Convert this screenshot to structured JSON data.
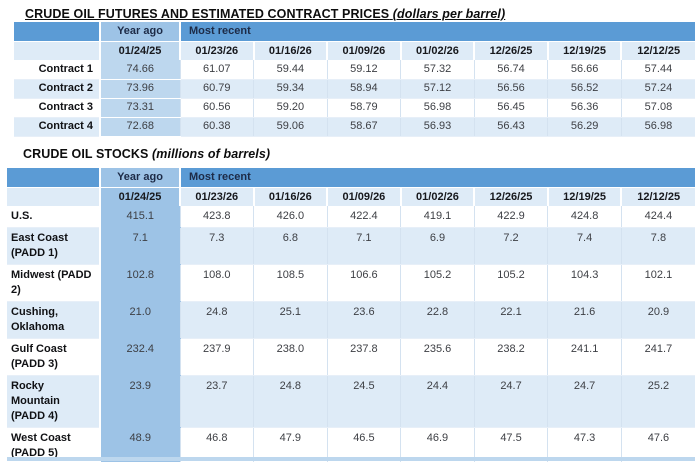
{
  "futures": {
    "title": "CRUDE OIL FUTURES AND ESTIMATED CONTRACT PRICES",
    "unit": "(dollars per barrel)",
    "year_ago_label": "Year ago",
    "most_recent_label": "Most recent",
    "year_ago_date": "01/24/25",
    "dates": [
      "01/23/26",
      "01/16/26",
      "01/09/26",
      "01/02/26",
      "12/26/25",
      "12/19/25",
      "12/12/25"
    ],
    "rows": [
      {
        "label": "Contract 1",
        "values": [
          "74.66",
          "61.07",
          "59.44",
          "59.12",
          "57.32",
          "56.74",
          "56.66",
          "57.44"
        ]
      },
      {
        "label": "Contract 2",
        "values": [
          "73.96",
          "60.79",
          "59.34",
          "58.94",
          "57.12",
          "56.56",
          "56.52",
          "57.24"
        ]
      },
      {
        "label": "Contract 3",
        "values": [
          "73.31",
          "60.56",
          "59.20",
          "58.79",
          "56.98",
          "56.45",
          "56.36",
          "57.08"
        ]
      },
      {
        "label": "Contract 4",
        "values": [
          "72.68",
          "60.38",
          "59.06",
          "58.67",
          "56.93",
          "56.43",
          "56.29",
          "56.98"
        ]
      }
    ]
  },
  "stocks": {
    "title": "CRUDE OIL STOCKS",
    "unit": "(millions of barrels)",
    "year_ago_label": "Year ago",
    "most_recent_label": "Most recent",
    "year_ago_date": "01/24/25",
    "dates": [
      "01/23/26",
      "01/16/26",
      "01/09/26",
      "01/02/26",
      "12/26/25",
      "12/19/25",
      "12/12/25"
    ],
    "rows": [
      {
        "label": "U.S.",
        "values": [
          "415.1",
          "423.8",
          "426.0",
          "422.4",
          "419.1",
          "422.9",
          "424.8",
          "424.4"
        ]
      },
      {
        "label": "East Coast (PADD 1)",
        "values": [
          "7.1",
          "7.3",
          "6.8",
          "7.1",
          "6.9",
          "7.2",
          "7.4",
          "7.8"
        ]
      },
      {
        "label": "Midwest (PADD 2)",
        "values": [
          "102.8",
          "108.0",
          "108.5",
          "106.6",
          "105.2",
          "105.2",
          "104.3",
          "102.1"
        ]
      },
      {
        "label": "Cushing, Oklahoma",
        "values": [
          "21.0",
          "24.8",
          "25.1",
          "23.6",
          "22.8",
          "22.1",
          "21.6",
          "20.9"
        ]
      },
      {
        "label": "Gulf Coast (PADD 3)",
        "values": [
          "232.4",
          "237.9",
          "238.0",
          "237.8",
          "235.6",
          "238.2",
          "241.1",
          "241.7"
        ]
      },
      {
        "label": "Rocky Mountain (PADD 4)",
        "values": [
          "23.9",
          "23.7",
          "24.8",
          "24.5",
          "24.4",
          "24.7",
          "24.7",
          "25.2"
        ]
      },
      {
        "label": "West Coast (PADD 5)",
        "values": [
          "48.9",
          "46.8",
          "47.9",
          "46.5",
          "46.9",
          "47.5",
          "47.3",
          "47.6"
        ]
      }
    ]
  },
  "colors": {
    "header_blue": "#5B9BD5",
    "year_ago_header_blue": "#9DC3E6",
    "futures_year_ago_column": "#BDD7EE",
    "stocks_year_ago_column": "#9DC3E6",
    "stripe_row": "#DEEBF7",
    "white_row": "#FFFFFF"
  }
}
